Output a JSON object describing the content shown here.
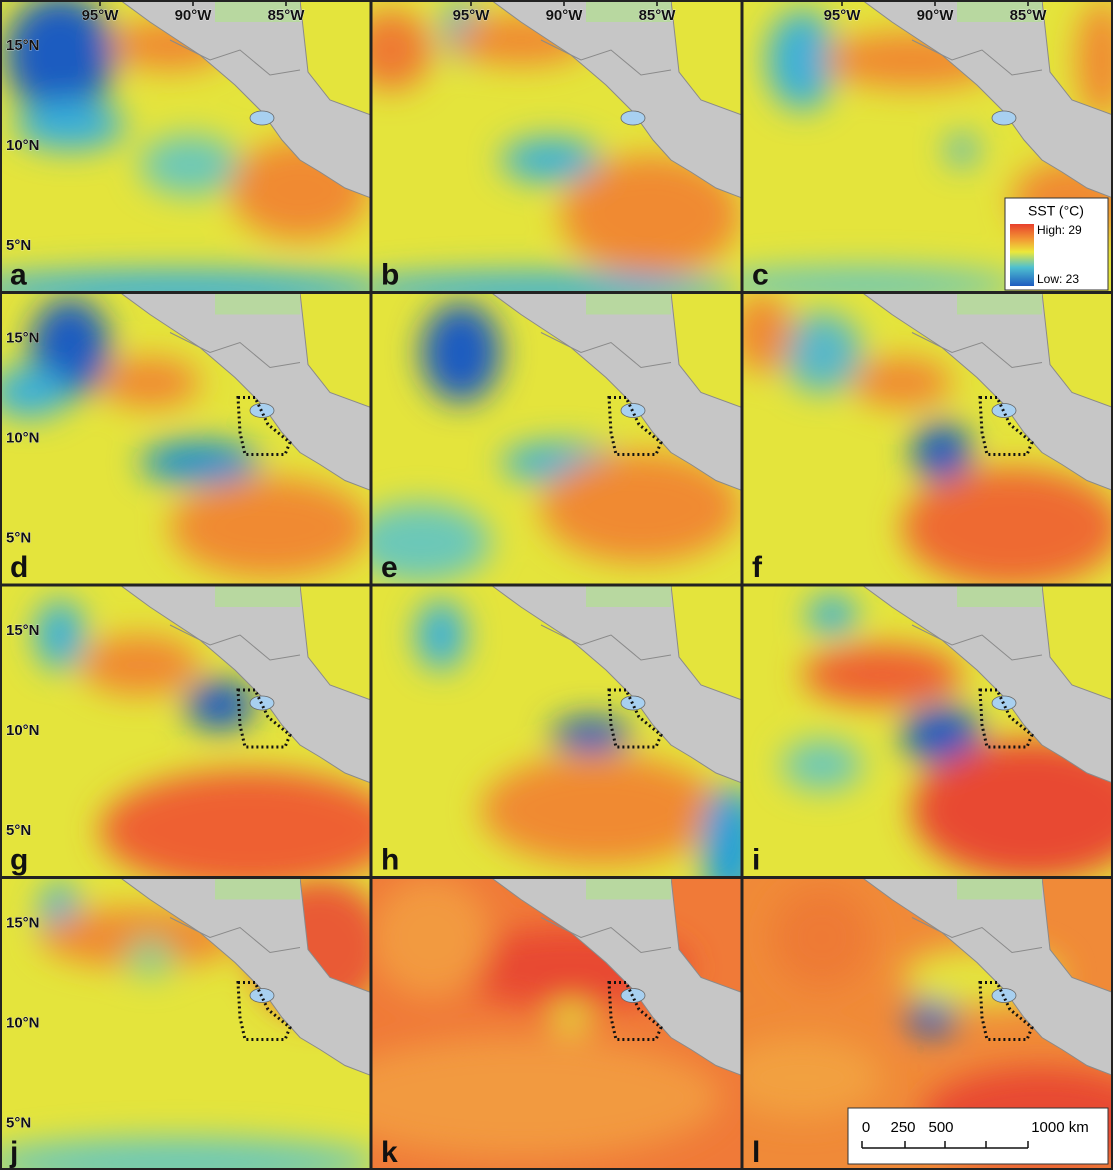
{
  "longitude_labels": [
    "95°W",
    "90°W",
    "85°W"
  ],
  "latitude_labels": [
    "15°N",
    "10°N",
    "5°N"
  ],
  "panels": [
    "a",
    "b",
    "c",
    "d",
    "e",
    "f",
    "g",
    "h",
    "i",
    "j",
    "k",
    "l"
  ],
  "legend": {
    "title": "SST (°C)",
    "high": "High: 29",
    "low": "Low: 23"
  },
  "scale_bar": {
    "labels": [
      "0",
      "250",
      "500",
      "1000 km"
    ]
  }
}
